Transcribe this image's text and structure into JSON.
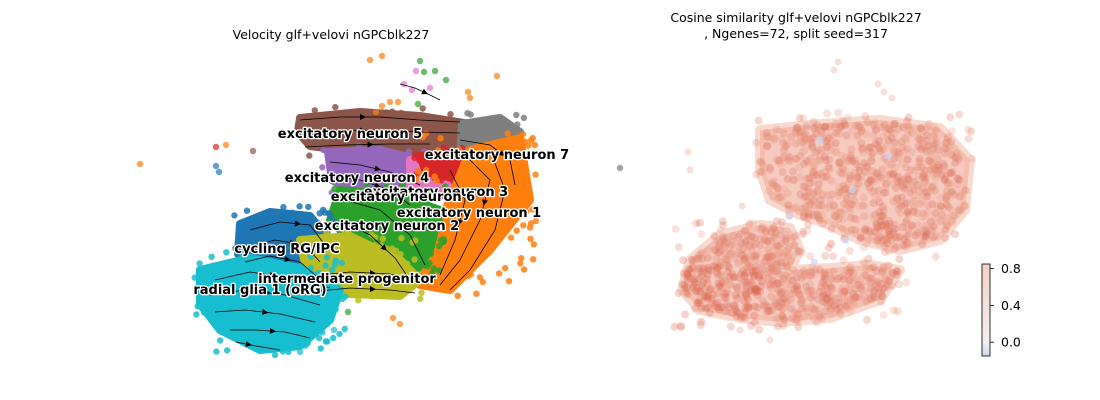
{
  "chart_data": [
    {
      "type": "scatter",
      "title": "Velocity glf+velovi nGPCblk227",
      "legend": "on-data",
      "grid": false,
      "clusters": [
        {
          "name": "excitatory neuron 5",
          "color": "#8c564b"
        },
        {
          "name": "excitatory neuron 7",
          "color": "#7f7f7f"
        },
        {
          "name": "excitatory neuron 4",
          "color": "#9467bd"
        },
        {
          "name": "excitatory neuron 3",
          "color": "#e377c2"
        },
        {
          "name": "excitatory neuron 6",
          "color": "#d62728"
        },
        {
          "name": "excitatory neuron 1",
          "color": "#ff7f0e"
        },
        {
          "name": "excitatory neuron 2",
          "color": "#2ca02c"
        },
        {
          "name": "cycling RG/IPC",
          "color": "#1f77b4"
        },
        {
          "name": "intermediate progenitor",
          "color": "#bcbd22"
        },
        {
          "name": "radial glia 1 (oRG)",
          "color": "#17becf"
        }
      ]
    },
    {
      "type": "scatter",
      "title": "Cosine similarity glf+velovi nGPCblk227\n, Ngenes=72, split seed=317",
      "grid": false,
      "colorbar": {
        "ticks": [
          "0.8",
          "0.4",
          "0.0"
        ],
        "range": [
          -0.15,
          0.85
        ],
        "colors": {
          "low": "#cfd8f0",
          "mid": "#f0f0f0",
          "high": "#f4d2c4"
        }
      },
      "point_color": "#e2806a"
    }
  ]
}
